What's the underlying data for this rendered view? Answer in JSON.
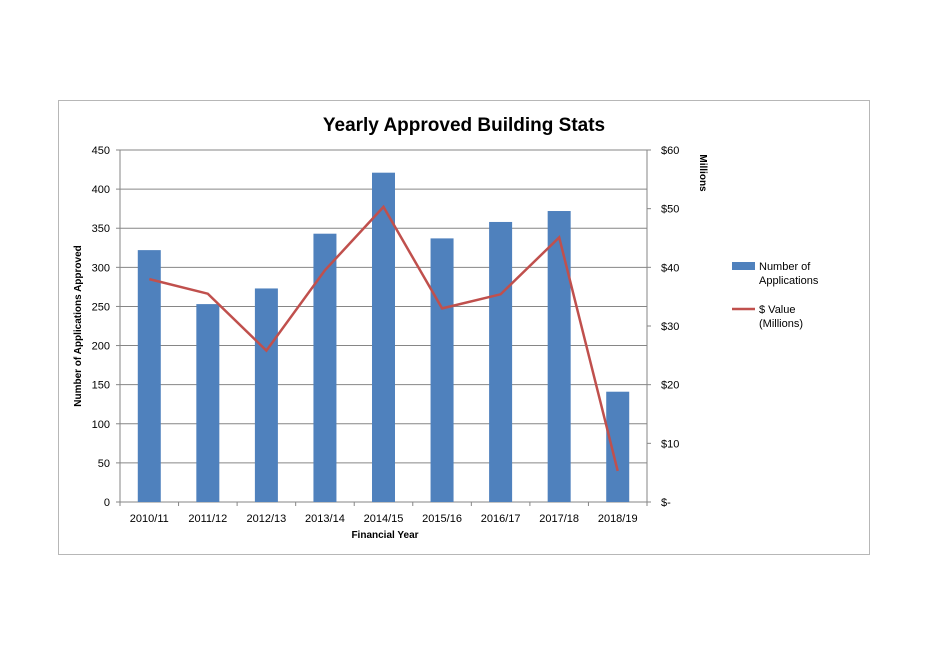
{
  "chart_data": {
    "type": "bar+line",
    "title": "Yearly Approved Building Stats",
    "categories": [
      "2010/11",
      "2011/12",
      "2012/13",
      "2013/14",
      "2014/15",
      "2015/16",
      "2016/17",
      "2017/18",
      "2018/19"
    ],
    "series": [
      {
        "name": "Number of Applications",
        "type": "bar",
        "axis": "left",
        "color": "#4f81bd",
        "values": [
          322,
          253,
          273,
          343,
          421,
          337,
          358,
          372,
          141
        ]
      },
      {
        "name": "$ Value (Millions)",
        "type": "line",
        "axis": "right",
        "color": "#c0504d",
        "values": [
          38,
          35.5,
          25.8,
          39.5,
          50.3,
          33,
          35.4,
          45.1,
          5.3
        ]
      }
    ],
    "xlabel": "Financial Year",
    "ylabel": "Number of Applications Approved",
    "y2label": "Millions",
    "ylim": [
      0,
      450
    ],
    "y2lim": [
      0,
      60
    ],
    "yticks": [
      "0",
      "50",
      "100",
      "150",
      "200",
      "250",
      "300",
      "350",
      "400",
      "450"
    ],
    "y2ticks": [
      "$-",
      "$10",
      "$20",
      "$30",
      "$40",
      "$50",
      "$60"
    ],
    "legend": [
      {
        "lines": [
          "Number of",
          "Applications"
        ]
      },
      {
        "lines": [
          "$ Value",
          "(Millions)"
        ]
      }
    ],
    "legend_position": "right",
    "grid": true
  }
}
